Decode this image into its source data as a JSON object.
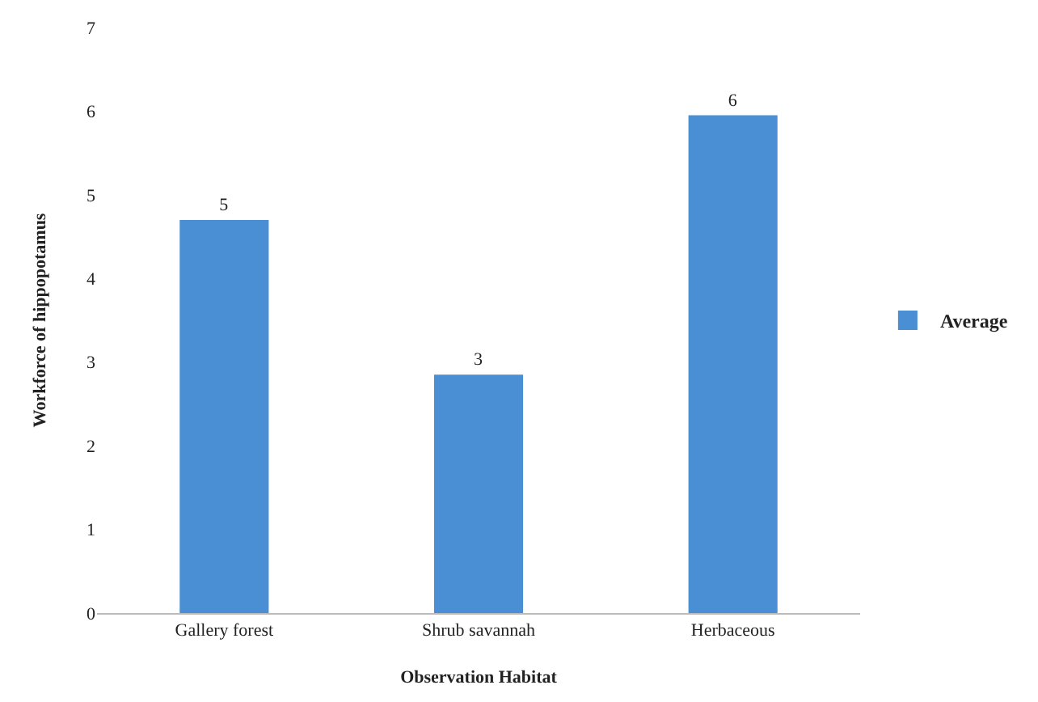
{
  "chart_data": {
    "type": "bar",
    "xlabel": "Observation Habitat",
    "ylabel": "Workforce of hippopotamus",
    "categories": [
      "Gallery forest",
      "Shrub savannah",
      "Herbaceous"
    ],
    "series": [
      {
        "name": "Average",
        "color": "#4a8fd4",
        "values": [
          4.7,
          2.85,
          5.95
        ],
        "value_labels": [
          "5",
          "3",
          "6"
        ]
      }
    ],
    "ylim": [
      0,
      7
    ],
    "yticks": [
      0,
      1,
      2,
      3,
      4,
      5,
      6,
      7
    ],
    "grid": false,
    "legend": "right"
  }
}
